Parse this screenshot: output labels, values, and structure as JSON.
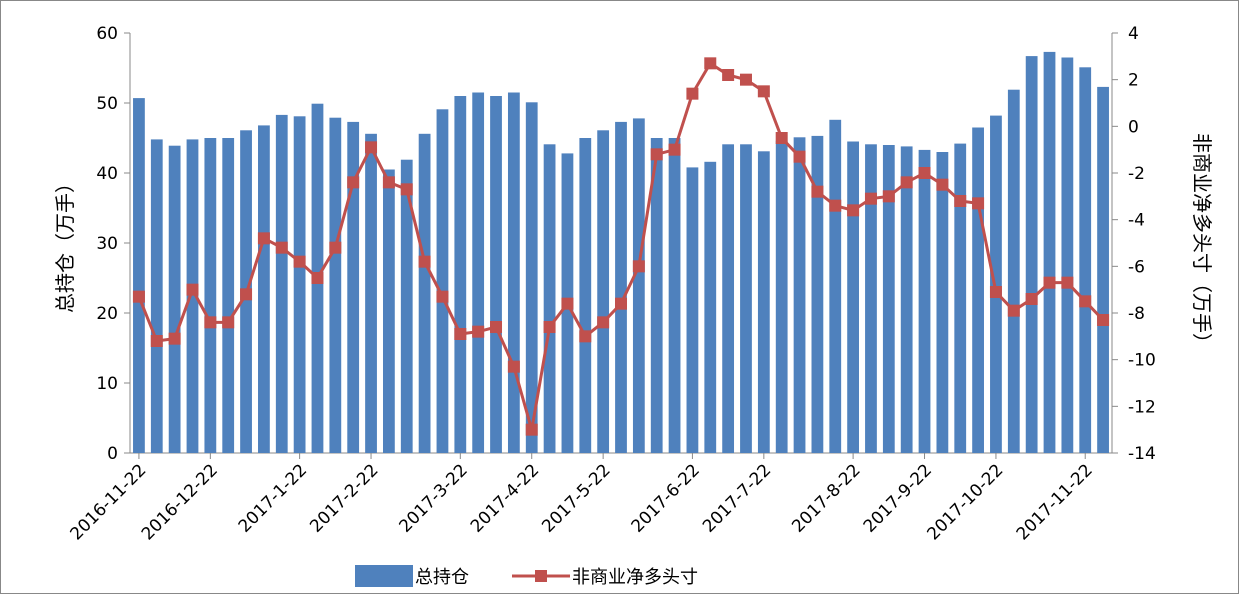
{
  "chart_data": {
    "type": "bar_line",
    "categories": [
      "2016-11-22",
      null,
      null,
      null,
      "2016-12-22",
      null,
      null,
      null,
      null,
      "2017-1-22",
      null,
      null,
      null,
      "2017-2-22",
      null,
      null,
      null,
      null,
      "2017-3-22",
      null,
      null,
      null,
      "2017-4-22",
      null,
      null,
      null,
      "2017-5-22",
      null,
      null,
      null,
      null,
      "2017-6-22",
      null,
      null,
      null,
      "2017-7-22",
      null,
      null,
      null,
      null,
      "2017-8-22",
      null,
      null,
      null,
      "2017-9-22",
      null,
      null,
      null,
      "2017-10-22",
      null,
      null,
      null,
      null,
      "2017-11-22",
      null
    ],
    "y_label": "总持仓（万手）",
    "y2_label": "非商业净多头寸（万手）",
    "ylim": [
      0,
      60
    ],
    "yticks": [
      0,
      10,
      20,
      30,
      40,
      50,
      60
    ],
    "y2lim": [
      -14,
      4
    ],
    "y2ticks": [
      -14,
      -12,
      -10,
      -8,
      -6,
      -4,
      -2,
      0,
      2,
      4
    ],
    "legend": "bottom",
    "series": [
      {
        "name": "总持仓",
        "type": "bar",
        "color": "#4f81bd",
        "values": [
          50.7,
          44.8,
          43.9,
          44.8,
          45.0,
          45.0,
          46.1,
          46.8,
          48.3,
          48.1,
          49.9,
          47.9,
          47.3,
          45.6,
          40.5,
          41.9,
          45.6,
          49.1,
          51.0,
          51.5,
          51.0,
          51.5,
          50.1,
          44.1,
          42.8,
          45.0,
          46.1,
          47.3,
          47.8,
          45.0,
          45.0,
          40.8,
          41.6,
          44.1,
          44.1,
          43.1,
          44.6,
          45.1,
          45.3,
          47.6,
          44.5,
          44.1,
          44.0,
          43.8,
          43.3,
          43.0,
          44.2,
          46.5,
          48.2,
          51.9,
          56.7,
          57.3,
          56.5,
          55.1,
          52.3
        ]
      },
      {
        "name": "非商业净多头寸",
        "type": "line",
        "axis": "y2",
        "color": "#c0504d",
        "values": [
          -7.3,
          -9.2,
          -9.1,
          -7.0,
          -8.4,
          -8.4,
          -7.2,
          -4.8,
          -5.2,
          -5.8,
          -6.5,
          -5.2,
          -2.4,
          -0.9,
          -2.4,
          -2.7,
          -5.8,
          -7.3,
          -8.9,
          -8.8,
          -8.6,
          -10.3,
          -13.0,
          -8.6,
          -7.6,
          -9.0,
          -8.4,
          -7.6,
          -6.0,
          -1.2,
          -1.0,
          1.4,
          2.7,
          2.2,
          2.0,
          1.5,
          -0.5,
          -1.3,
          -2.8,
          -3.4,
          -3.6,
          -3.1,
          -3.0,
          -2.4,
          -2.0,
          -2.5,
          -3.2,
          -3.3,
          -7.1,
          -7.9,
          -7.4,
          -6.7,
          -6.7,
          -7.5,
          -8.3
        ]
      }
    ]
  }
}
